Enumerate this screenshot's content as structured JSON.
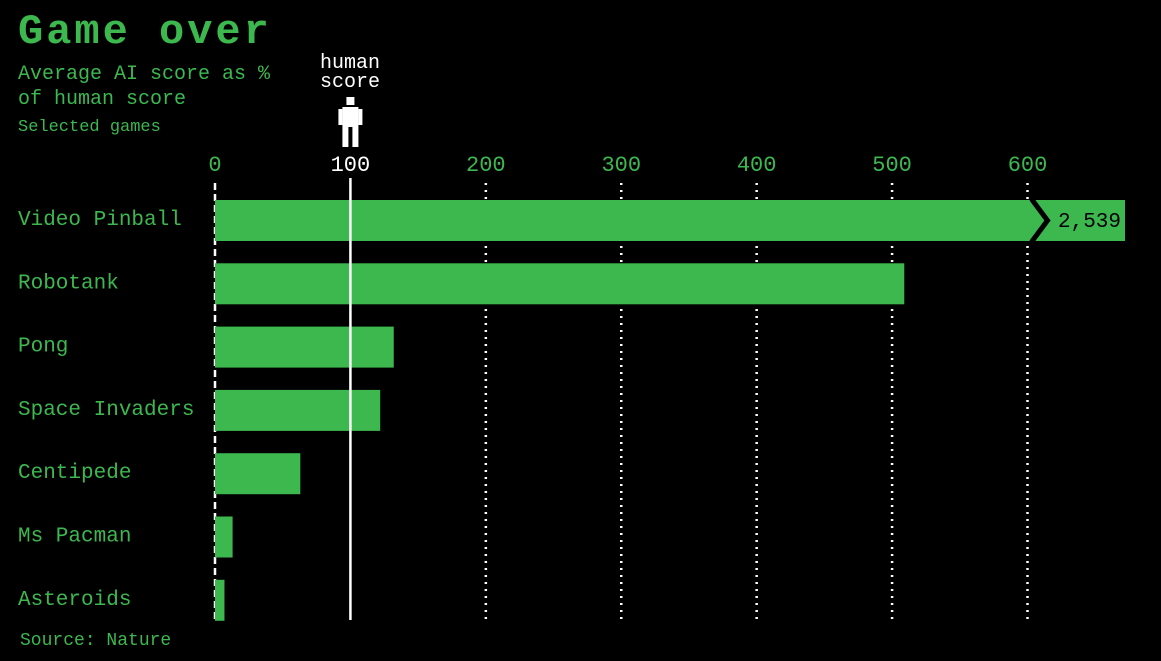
{
  "chart_data": {
    "type": "bar",
    "orientation": "horizontal",
    "title": "Game over",
    "subtitle": "Average AI score as % of human score",
    "note": "Selected games",
    "source": "Source: Nature",
    "categories": [
      "Video Pinball",
      "Robotank",
      "Pong",
      "Space Invaders",
      "Centipede",
      "Ms Pacman",
      "Asteroids"
    ],
    "values": [
      2539,
      509,
      132,
      122,
      63,
      13,
      7
    ],
    "value_labels": [
      "2,539",
      null,
      null,
      null,
      null,
      null,
      null
    ],
    "color": "#3cb84f",
    "xlim": [
      0,
      672
    ],
    "xticks": [
      0,
      100,
      200,
      300,
      400,
      500,
      600
    ],
    "grid": true,
    "reference": {
      "value": 100,
      "label": "human score"
    }
  }
}
